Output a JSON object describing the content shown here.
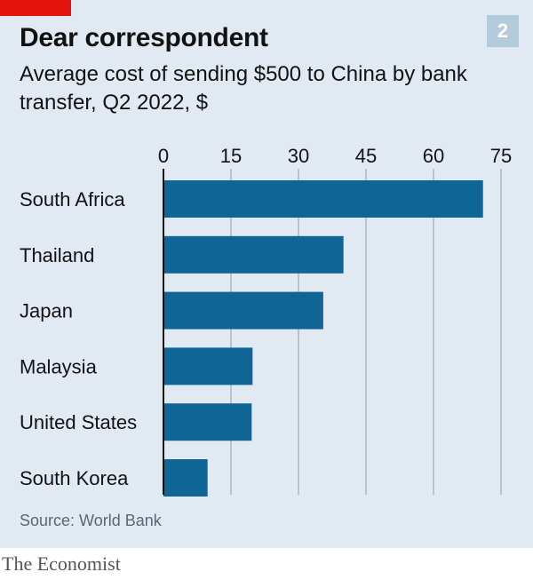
{
  "header": {
    "chart_number": "2",
    "title": "Dear correspondent",
    "subtitle": "Average cost of sending $500 to China by bank transfer, Q2 2022, $"
  },
  "footer": {
    "source": "Source: World Bank",
    "brand": "The Economist"
  },
  "colors": {
    "bar": "#0f6596",
    "panel_background": "#e1eaf2",
    "gridline": "#b9c3cc",
    "baseline": "#121212",
    "brand_red": "#e3120b"
  },
  "chart_data": {
    "type": "bar",
    "orientation": "horizontal",
    "title": "Dear correspondent",
    "subtitle": "Average cost of sending $500 to China by bank transfer, Q2 2022, $",
    "categories": [
      "South Africa",
      "Thailand",
      "Japan",
      "Malaysia",
      "United States",
      "South Korea"
    ],
    "values": [
      71,
      40,
      35.5,
      19.8,
      19.6,
      9.8
    ],
    "xlim": [
      0,
      75
    ],
    "xticks": [
      0,
      15,
      30,
      45,
      60,
      75
    ],
    "xticks_position": "top",
    "grid": true,
    "legend": "none",
    "source": "Source: World Bank"
  }
}
